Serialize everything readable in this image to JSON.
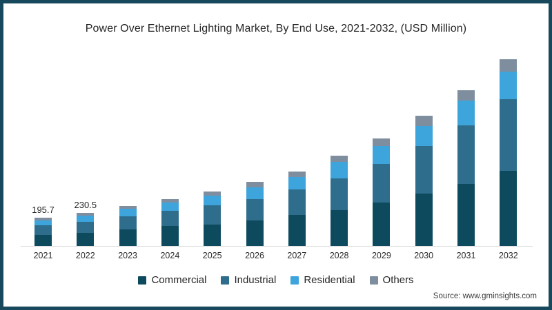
{
  "title": "Power Over Ethernet Lighting Market, By End Use, 2021-2032, (USD Million)",
  "source_text": "Source: www.gminsights.com",
  "colors": {
    "frame_border": "#17485c",
    "background": "#ffffff",
    "axis_line": "#dcdcdc",
    "title_text": "#262626",
    "commercial": "#0d4a5e",
    "industrial": "#2f6d8d",
    "residential": "#3da4dc",
    "others": "#7e8e9f"
  },
  "legend": {
    "position": "bottom",
    "items": [
      {
        "label": "Commercial",
        "color": "#0d4a5e"
      },
      {
        "label": "Industrial",
        "color": "#2f6d8d"
      },
      {
        "label": "Residential",
        "color": "#3da4dc"
      },
      {
        "label": "Others",
        "color": "#7e8e9f"
      }
    ]
  },
  "chart_data": {
    "type": "bar",
    "stacked": true,
    "title": "Power Over Ethernet Lighting Market, By End Use, 2021-2032, (USD Million)",
    "unit": "USD Million",
    "categories": [
      "2021",
      "2022",
      "2023",
      "2024",
      "2025",
      "2026",
      "2027",
      "2028",
      "2029",
      "2030",
      "2031",
      "2032"
    ],
    "series": [
      {
        "name": "Commercial",
        "color": "#0d4a5e",
        "values": [
          75,
          89,
          114,
          137,
          150,
          176,
          214,
          248,
          300,
          362,
          430,
          520
        ]
      },
      {
        "name": "Industrial",
        "color": "#2f6d8d",
        "values": [
          70,
          77,
          90,
          105,
          132,
          148,
          178,
          222,
          270,
          328,
          406,
          496
        ]
      },
      {
        "name": "Residential",
        "color": "#3da4dc",
        "values": [
          32,
          44,
          53,
          60,
          66,
          80,
          83,
          110,
          122,
          142,
          172,
          190
        ]
      },
      {
        "name": "Others",
        "color": "#7e8e9f",
        "values": [
          18.7,
          20.5,
          21,
          24,
          30,
          42,
          42,
          47,
          52,
          68,
          72,
          89
        ]
      }
    ],
    "totals": [
      195.7,
      230.5,
      278,
      326,
      378,
      446,
      517,
      627,
      744,
      900,
      1080,
      1295
    ],
    "value_labels": [
      "195.7",
      "230.5",
      "",
      "",
      "",
      "",
      "",
      "",
      "",
      "",
      "",
      ""
    ],
    "xlabel": "",
    "ylabel": "",
    "grid": false,
    "legend_position": "bottom"
  }
}
